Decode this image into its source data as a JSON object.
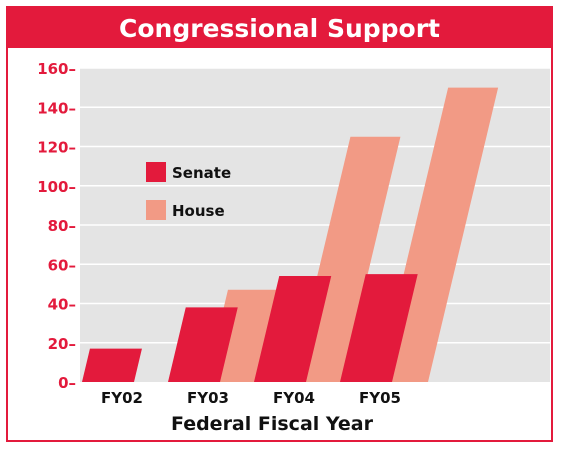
{
  "chart_data": {
    "type": "bar",
    "title": "Congressional Support",
    "xlabel": "Federal Fiscal Year",
    "ylabel": "",
    "categories": [
      "FY02",
      "FY03",
      "FY04",
      "FY05"
    ],
    "series": [
      {
        "name": "Senate",
        "values": [
          17,
          38,
          54,
          55
        ],
        "color": "#e31a3c"
      },
      {
        "name": "House",
        "values": [
          0,
          47,
          125,
          150
        ],
        "color": "#f29a85"
      }
    ],
    "ylim": [
      0,
      160
    ],
    "yticks": [
      "0–",
      "20–",
      "40–",
      "60–",
      "80–",
      "100–",
      "120–",
      "140–",
      "160–"
    ],
    "grid": true,
    "legend": "top-left",
    "colors": {
      "accent": "#e31a3c",
      "plot_background": "#e4e4e4",
      "gridline": "#ffffff"
    }
  }
}
